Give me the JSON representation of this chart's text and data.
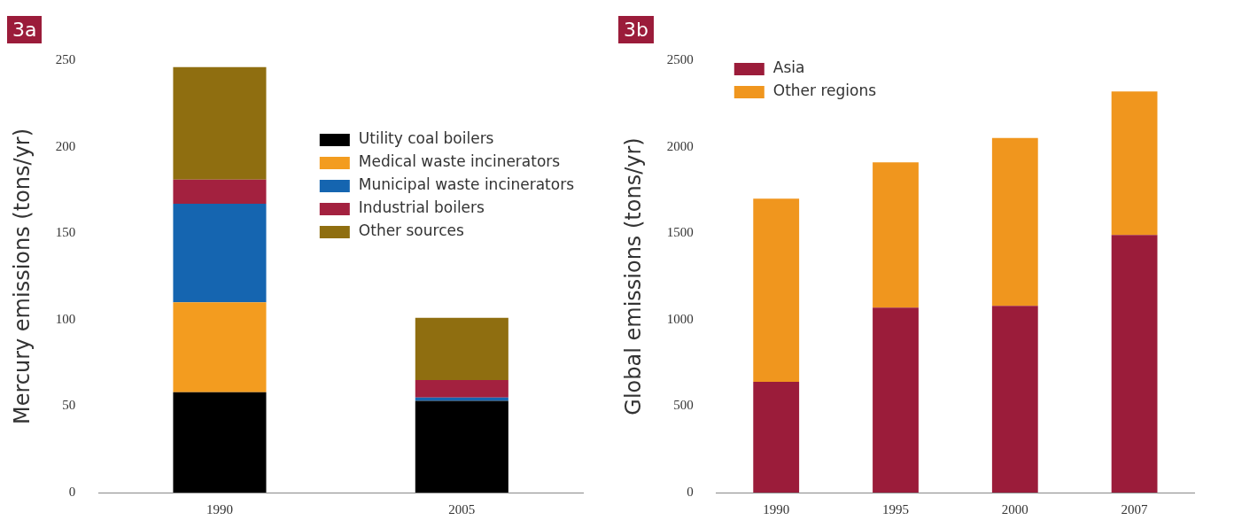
{
  "chart_data": [
    {
      "type": "bar",
      "title": "3a",
      "ylabel": "Mercury emissions (tons/yr)",
      "categories": [
        "1990",
        "2005"
      ],
      "stacked": true,
      "legend": "top right",
      "ylim": [
        0,
        250
      ],
      "yticks": [
        0,
        50,
        100,
        150,
        200,
        250
      ],
      "series": [
        {
          "name": "Utility coal boilers",
          "color": "#000000",
          "values": [
            58,
            53
          ]
        },
        {
          "name": "Medical waste incinerators",
          "color": "#f39c1f",
          "values": [
            52,
            0
          ]
        },
        {
          "name": "Municipal waste incinerators",
          "color": "#1565b0",
          "values": [
            57,
            2
          ]
        },
        {
          "name": "Industrial boilers",
          "color": "#a3213f",
          "values": [
            14,
            10
          ]
        },
        {
          "name": "Other sources",
          "color": "#8f6e10",
          "values": [
            65,
            36
          ]
        }
      ]
    },
    {
      "type": "bar",
      "title": "3b",
      "ylabel": "Global emissions (tons/yr)",
      "categories": [
        "1990",
        "1995",
        "2000",
        "2007"
      ],
      "stacked": true,
      "legend": "top left",
      "ylim": [
        0,
        2500
      ],
      "yticks": [
        0,
        500,
        1000,
        1500,
        2000,
        2500
      ],
      "series": [
        {
          "name": "Asia",
          "color": "#9b1c3a",
          "values": [
            640,
            1070,
            1080,
            1490
          ]
        },
        {
          "name": "Other regions",
          "color": "#f0961e",
          "values": [
            1060,
            840,
            970,
            830
          ]
        }
      ]
    }
  ]
}
